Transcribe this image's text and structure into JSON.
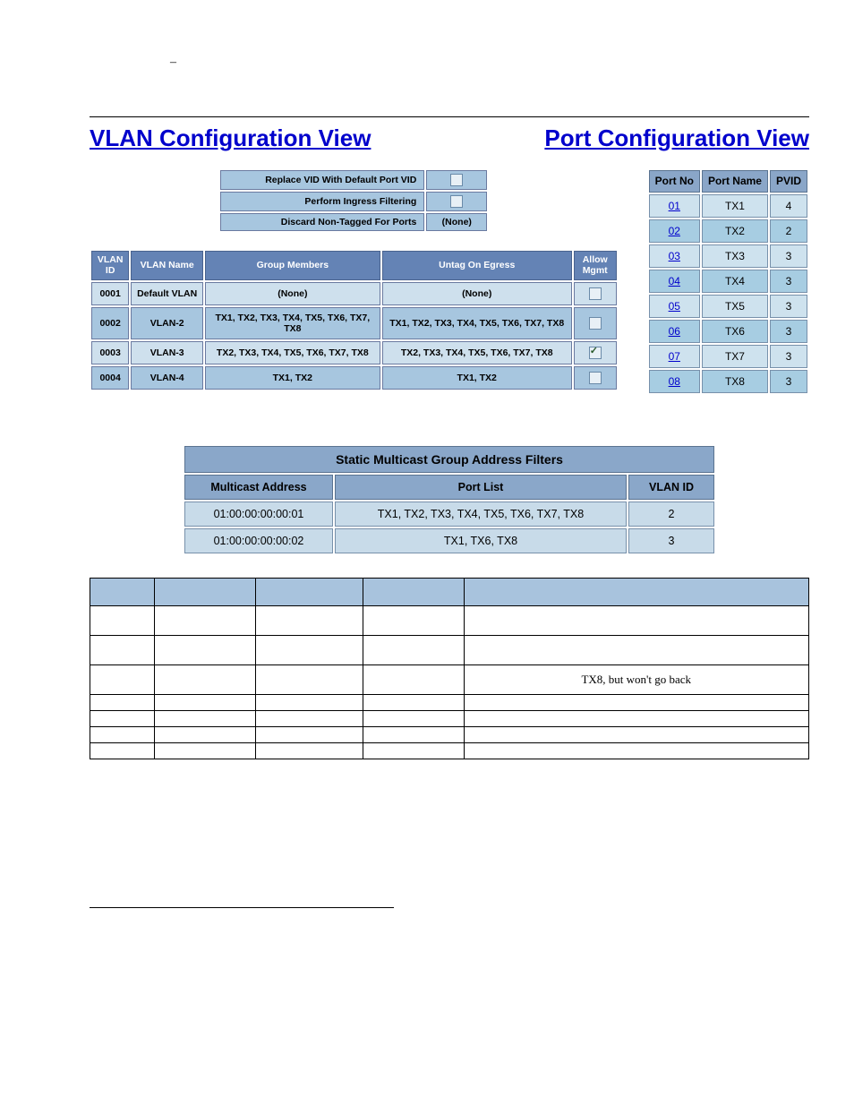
{
  "titles": {
    "vlan": "VLAN Configuration View",
    "port": "Port Configuration View"
  },
  "settings": {
    "rows": [
      {
        "label": "Replace VID With Default Port VID",
        "type": "checkbox",
        "checked": false
      },
      {
        "label": "Perform Ingress Filtering",
        "type": "checkbox",
        "checked": false
      },
      {
        "label": "Discard Non-Tagged For Ports",
        "type": "text",
        "value": "(None)"
      }
    ]
  },
  "vlanTable": {
    "headers": {
      "id": "VLAN\nID",
      "name": "VLAN\nName",
      "members": "Group\nMembers",
      "untag": "Untag On\nEgress",
      "mgmt": "Allow\nMgmt"
    },
    "rows": [
      {
        "id": "0001",
        "name": "Default VLAN",
        "members": "(None)",
        "untag": "(None)",
        "mgmt": false
      },
      {
        "id": "0002",
        "name": "VLAN-2",
        "members": "TX1, TX2, TX3, TX4, TX5, TX6, TX7, TX8",
        "untag": "TX1, TX2, TX3, TX4, TX5, TX6, TX7, TX8",
        "mgmt": false
      },
      {
        "id": "0003",
        "name": "VLAN-3",
        "members": "TX2, TX3, TX4, TX5, TX6, TX7, TX8",
        "untag": "TX2, TX3, TX4, TX5, TX6, TX7, TX8",
        "mgmt": true
      },
      {
        "id": "0004",
        "name": "VLAN-4",
        "members": "TX1, TX2",
        "untag": "TX1, TX2",
        "mgmt": false
      }
    ]
  },
  "portTable": {
    "headers": {
      "no": "Port\nNo",
      "name": "Port\nName",
      "pvid": "PVID"
    },
    "rows": [
      {
        "no": "01",
        "name": "TX1",
        "pvid": "4"
      },
      {
        "no": "02",
        "name": "TX2",
        "pvid": "2"
      },
      {
        "no": "03",
        "name": "TX3",
        "pvid": "3"
      },
      {
        "no": "04",
        "name": "TX4",
        "pvid": "3"
      },
      {
        "no": "05",
        "name": "TX5",
        "pvid": "3"
      },
      {
        "no": "06",
        "name": "TX6",
        "pvid": "3"
      },
      {
        "no": "07",
        "name": "TX7",
        "pvid": "3"
      },
      {
        "no": "08",
        "name": "TX8",
        "pvid": "3"
      }
    ]
  },
  "multicast": {
    "title": "Static Multicast Group Address Filters",
    "headers": {
      "addr": "Multicast Address",
      "ports": "Port List",
      "vid": "VLAN ID"
    },
    "rows": [
      {
        "addr": "01:00:00:00:00:01",
        "ports": "TX1, TX2, TX3, TX4, TX5, TX6, TX7, TX8",
        "vid": "2"
      },
      {
        "addr": "01:00:00:00:00:02",
        "ports": "TX1, TX6, TX8",
        "vid": "3"
      }
    ]
  },
  "lowerTable": {
    "colCount": 5,
    "rows": [
      {
        "cells": [
          "",
          "",
          "",
          "",
          ""
        ],
        "short": false
      },
      {
        "cells": [
          "",
          "",
          "",
          "",
          ""
        ],
        "short": false
      },
      {
        "cells": [
          "",
          "",
          "",
          "",
          "TX8, but won't go back"
        ],
        "short": false
      },
      {
        "cells": [
          "",
          "",
          "",
          "",
          ""
        ],
        "short": true
      },
      {
        "cells": [
          "",
          "",
          "",
          "",
          ""
        ],
        "short": true
      },
      {
        "cells": [
          "",
          "",
          "",
          "",
          ""
        ],
        "short": true
      },
      {
        "cells": [
          "",
          "",
          "",
          "",
          ""
        ],
        "short": true
      }
    ]
  },
  "colors": {
    "link": "#0000cc",
    "headerBg": "#6483b5",
    "cellBgLight": "#cee0ed",
    "cellBgDark": "#a7c6df",
    "portHeaderBg": "#8aa6c8",
    "lowerHeaderBg": "#a8c3dd"
  }
}
